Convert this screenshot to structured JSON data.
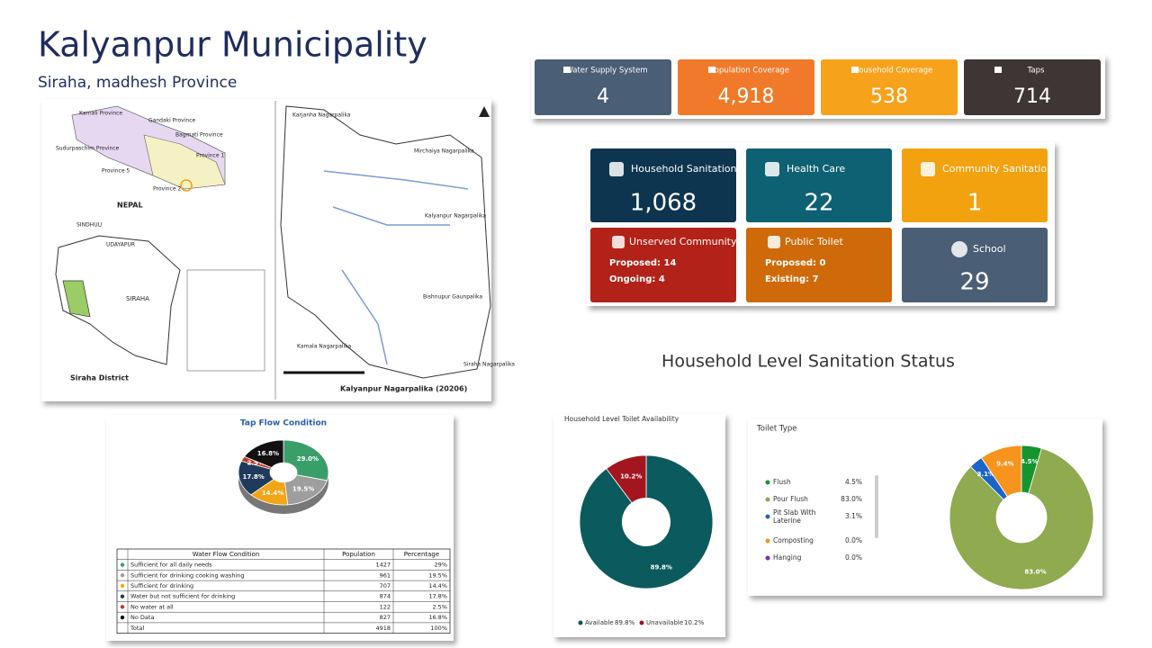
{
  "header": {
    "title": "Kalyanpur Municipality",
    "subtitle": "Siraha, madhesh Province"
  },
  "map": {
    "labels": [
      "Karnali Province",
      "Gandaki Province",
      "Bagmati Province",
      "Province 1",
      "Sudurpaschim Province",
      "Province 5",
      "Province 2",
      "NEPAL",
      "SINDHULI",
      "UDAYAPUR",
      "SIRAHA",
      "Siraha District",
      "Kalyanpur Nagarpalika  (20206)",
      "Karjanha Nagarpalika",
      "Mirchaiya Nagarpalika",
      "Kalyanpur Nagarpalika",
      "Bishnupur Gaunpalika",
      "Kamala Nagarpalika",
      "Siraha Nagarpalika"
    ]
  },
  "stats_top": [
    {
      "label": "Water Supply System",
      "value": "4",
      "color": "#4a5e75"
    },
    {
      "label": "Population Coverage",
      "value": "4,918",
      "color": "#f07a2a"
    },
    {
      "label": "Household Coverage",
      "value": "538",
      "color": "#f7a21b"
    },
    {
      "label": "Taps",
      "value": "714",
      "color": "#3e3535"
    }
  ],
  "stats_sanitation": [
    {
      "label": "Household Sanitation",
      "value": "1,068",
      "color": "#0e3550"
    },
    {
      "label": "Health Care",
      "value": "22",
      "color": "#0e6172"
    },
    {
      "label": "Community Sanitation",
      "value": "1",
      "color": "#f2a20f"
    },
    {
      "label": "Unserved Community",
      "lines": [
        "Proposed: 14",
        "Ongoing: 4"
      ],
      "color": "#b22218"
    },
    {
      "label": "Public Toilet",
      "lines": [
        "Proposed: 0",
        "Existing: 7"
      ],
      "color": "#cf6a0a"
    },
    {
      "label": "School",
      "value": "29",
      "color": "#4a5e75"
    }
  ],
  "section_title": "Household Level Sanitation Status",
  "tap_table": {
    "header": [
      "Water Flow Condition",
      "Population",
      "Percentage"
    ],
    "rows": [
      [
        "Sufficient for all daily needs",
        "1427",
        "29%"
      ],
      [
        "Sufficient for drinking cooking washing",
        "961",
        "19.5%"
      ],
      [
        "Sufficient for drinking",
        "707",
        "14.4%"
      ],
      [
        "Water but not sufficient for drinking",
        "874",
        "17.8%"
      ],
      [
        "No water at all",
        "122",
        "2.5%"
      ],
      [
        "No Data",
        "827",
        "16.8%"
      ],
      [
        "Total",
        "4918",
        "100%"
      ]
    ]
  },
  "chart_data": [
    {
      "type": "pie",
      "title": "Tap Flow Condition",
      "categories": [
        "Sufficient for all daily needs",
        "Sufficient for drinking cooking washing",
        "Sufficient for drinking",
        "Water but not sufficient for drinking",
        "No water at all",
        "No Data"
      ],
      "values": [
        29.0,
        19.5,
        14.4,
        17.8,
        2.5,
        16.8
      ],
      "value_labels": [
        "29.0%",
        "19.5%",
        "14.4%",
        "17.8%",
        "2.5%",
        "16.8%"
      ],
      "colors": [
        "#3a9e6b",
        "#9e9e9e",
        "#f2a516",
        "#1f3a5a",
        "#c0392b",
        "#111111"
      ]
    },
    {
      "type": "donut",
      "title": "Household Level Toilet Availability",
      "categories": [
        "Available",
        "Unavailable"
      ],
      "values": [
        89.8,
        10.2
      ],
      "value_labels": [
        "89.8%",
        "10.2%"
      ],
      "colors": [
        "#0b5a5e",
        "#a3161f"
      ]
    },
    {
      "type": "donut",
      "title": "Toilet Type",
      "categories": [
        "Flush",
        "Pour Flush",
        "Pit Slab With Laterine",
        "Composting",
        "Hanging",
        null
      ],
      "values": [
        4.5,
        83.0,
        3.1,
        0.0,
        0.0,
        9.4
      ],
      "value_labels": [
        "4.5%",
        "83.0%",
        "3.1%",
        "0.0%",
        "0.0%",
        "9.4%"
      ],
      "colors": [
        "#14952e",
        "#8faa4f",
        "#1c64c8",
        "#f7941d",
        "#7b2fa8",
        "#f7941d"
      ]
    }
  ]
}
